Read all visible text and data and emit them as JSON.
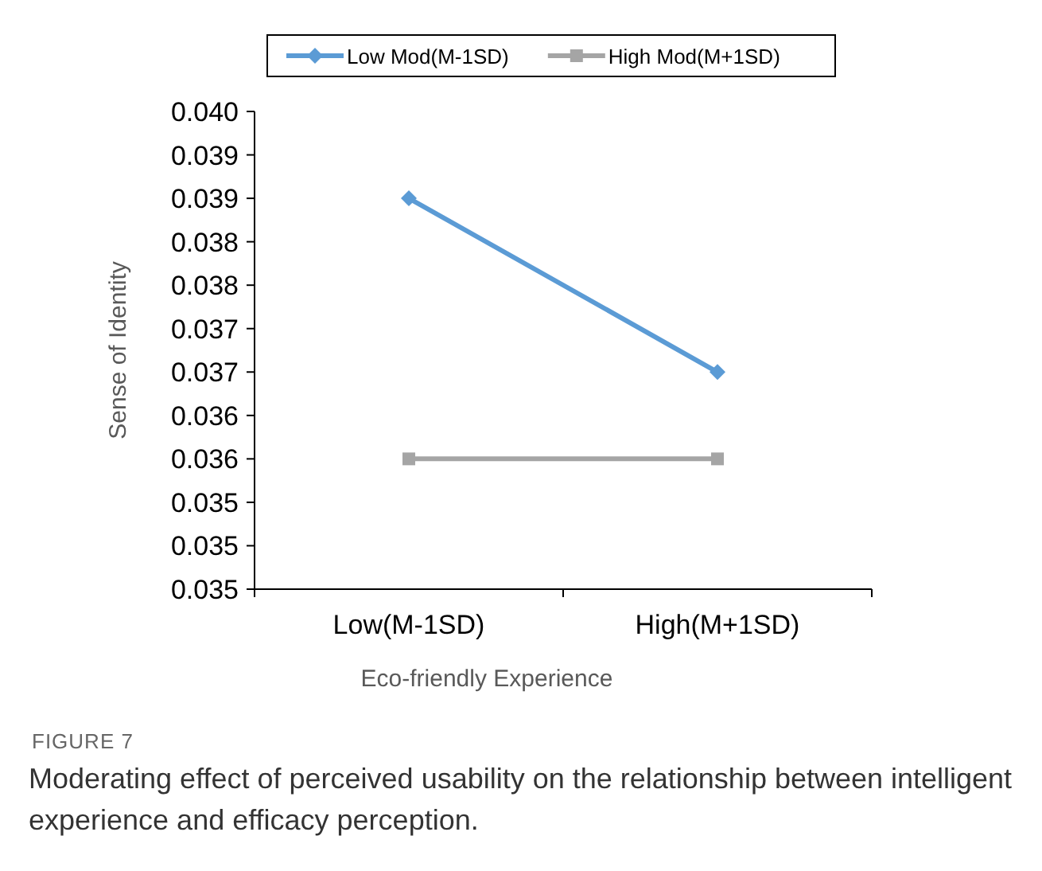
{
  "chart_data": {
    "type": "line",
    "xlabel": "Eco-friendly Experience",
    "ylabel": "Sense of Identity",
    "categories": [
      "Low(M-1SD)",
      "High(M+1SD)"
    ],
    "series": [
      {
        "name": "Low Mod(M-1SD)",
        "color": "#5b9bd5",
        "values": [
          0.039,
          0.037
        ],
        "marker": "diamond"
      },
      {
        "name": "High Mod(M+1SD)",
        "color": "#a5a5a5",
        "values": [
          0.036,
          0.036
        ],
        "marker": "square"
      }
    ],
    "ylim": [
      0.0345,
      0.04
    ],
    "yticks": [
      {
        "value": 0.0345,
        "label": "0.035"
      },
      {
        "value": 0.035,
        "label": "0.035"
      },
      {
        "value": 0.0355,
        "label": "0.035"
      },
      {
        "value": 0.036,
        "label": "0.036"
      },
      {
        "value": 0.0365,
        "label": "0.036"
      },
      {
        "value": 0.037,
        "label": "0.037"
      },
      {
        "value": 0.0375,
        "label": "0.037"
      },
      {
        "value": 0.038,
        "label": "0.038"
      },
      {
        "value": 0.0385,
        "label": "0.038"
      },
      {
        "value": 0.039,
        "label": "0.039"
      },
      {
        "value": 0.0395,
        "label": "0.039"
      },
      {
        "value": 0.04,
        "label": "0.040"
      }
    ],
    "legend": "top",
    "grid": false,
    "line_style": "solid",
    "annotations": [
      "FIGURE 7",
      "Moderating effect of perceived usability on the relationship between intelligent experience and efficacy perception."
    ]
  }
}
